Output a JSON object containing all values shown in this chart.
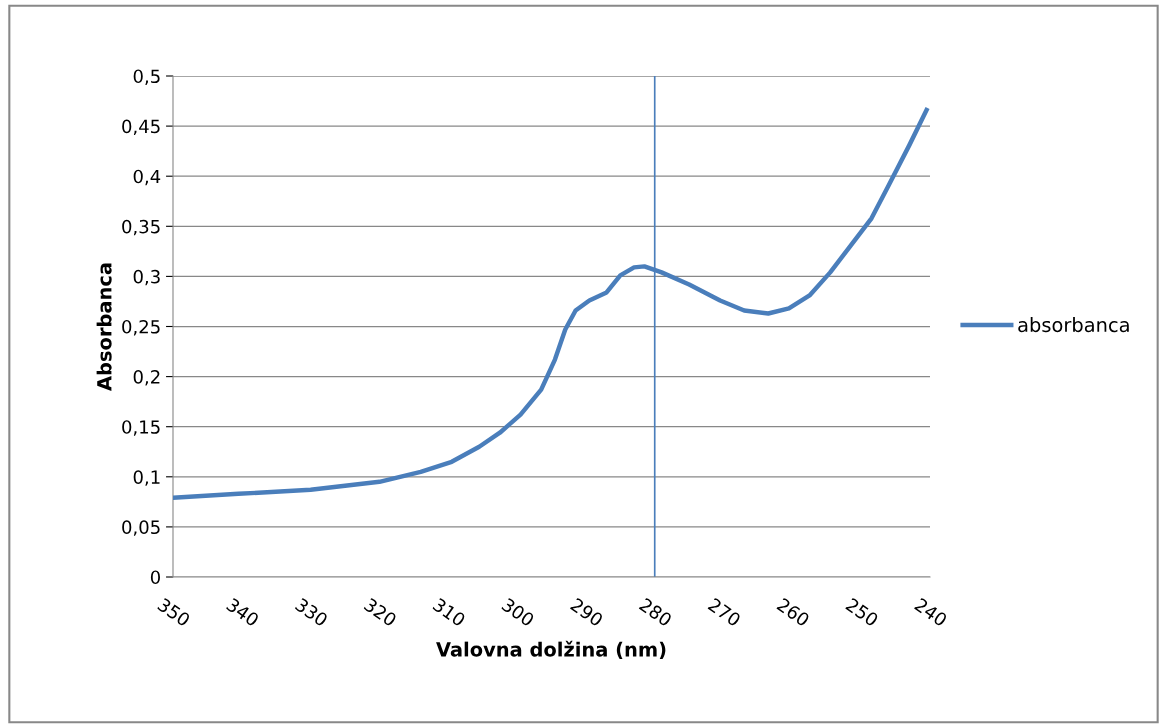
{
  "chart_data": {
    "type": "line",
    "xlabel": "Valovna dolžina (nm)",
    "ylabel": "Absorbanca",
    "x": [
      350,
      340.5,
      330,
      320,
      314,
      309.5,
      305.5,
      302.5,
      299.5,
      296.5,
      294.5,
      293,
      291.5,
      289.5,
      287,
      285,
      283,
      281.5,
      279,
      275,
      270.5,
      267,
      263.5,
      260.5,
      257.5,
      254.5,
      251.5,
      248.5,
      246,
      243,
      240.5
    ],
    "series": [
      {
        "name": "absorbanca",
        "color": "#4a7ebb",
        "values": [
          0.079,
          0.083,
          0.087,
          0.095,
          0.105,
          0.115,
          0.13,
          0.144,
          0.162,
          0.187,
          0.217,
          0.247,
          0.266,
          0.276,
          0.284,
          0.301,
          0.309,
          0.31,
          0.304,
          0.292,
          0.276,
          0.266,
          0.263,
          0.268,
          0.281,
          0.304,
          0.331,
          0.358,
          0.391,
          0.431,
          0.466
        ]
      }
    ],
    "xlim": [
      350,
      240
    ],
    "xticks": [
      350,
      340,
      330,
      320,
      310,
      300,
      290,
      280,
      270,
      260,
      250,
      240
    ],
    "ylim": [
      0,
      0.5
    ],
    "yticks": [
      0,
      {
        "value": 0.05,
        "label": "0,05"
      },
      {
        "value": 0.1,
        "label": "0,1"
      },
      {
        "value": 0.15,
        "label": "0,15"
      },
      {
        "value": 0.2,
        "label": "0,2"
      },
      {
        "value": 0.25,
        "label": "0,25"
      },
      {
        "value": 0.3,
        "label": "0,3"
      },
      {
        "value": 0.35,
        "label": "0,35"
      },
      {
        "value": 0.4,
        "label": "0,4"
      },
      {
        "value": 0.45,
        "label": "0,45"
      },
      {
        "value": 0.5,
        "label": "0,5"
      }
    ],
    "ref_lines": [
      {
        "axis": "x",
        "value": 280,
        "color": "#4a7ebb"
      }
    ],
    "grid": "y",
    "legend": "right",
    "marker": "none",
    "line_style": "solid"
  }
}
